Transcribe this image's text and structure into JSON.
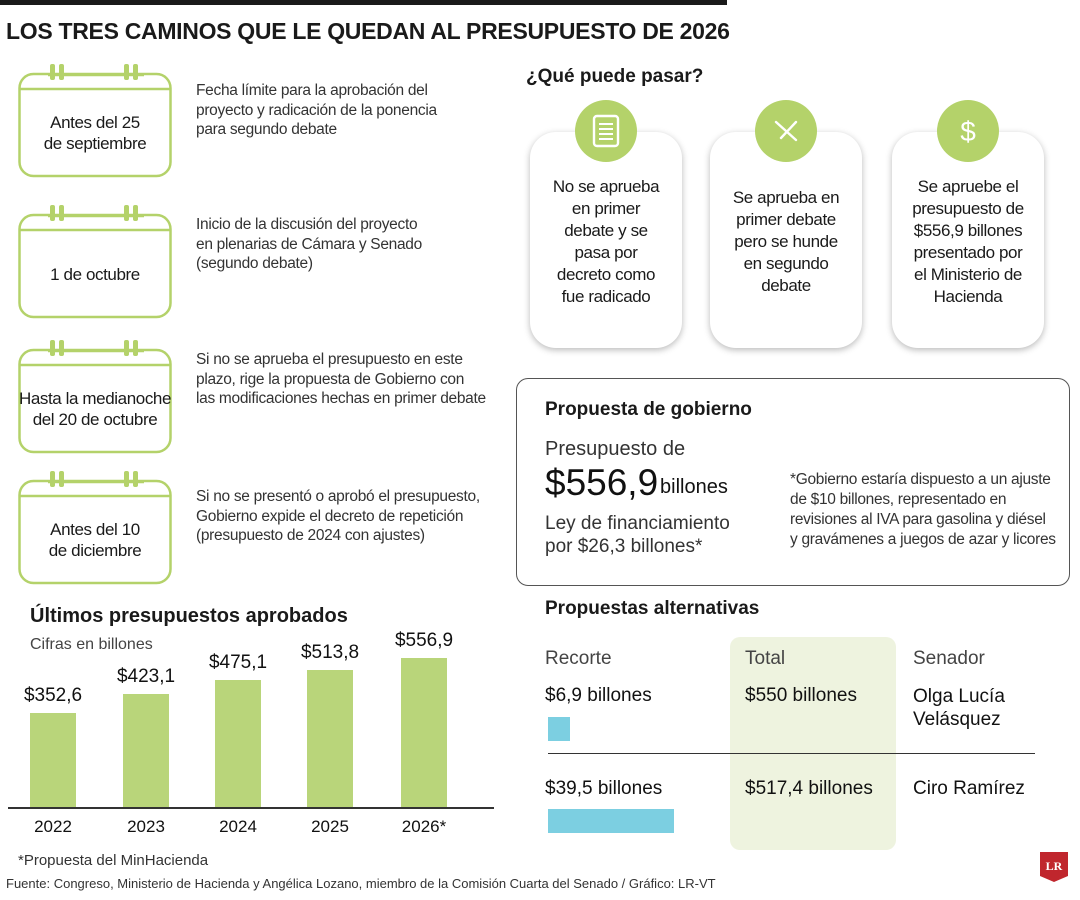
{
  "title": "LOS TRES CAMINOS QUE LE QUEDAN AL PRESUPUESTO DE 2026",
  "timeline": [
    {
      "date_lines": [
        "Antes del 25",
        "de septiembre"
      ],
      "desc_lines": [
        "Fecha límite para la aprobación del",
        "proyecto y radicación de la ponencia",
        "para segundo debate"
      ]
    },
    {
      "date_lines": [
        "1 de octubre"
      ],
      "desc_lines": [
        "Inicio de la discusión del proyecto",
        "en plenarias de Cámara y Senado",
        "(segundo debate)"
      ]
    },
    {
      "date_lines": [
        "Hasta la medianoche",
        "del 20 de octubre"
      ],
      "desc_lines": [
        "Si no se aprueba el presupuesto en este",
        "plazo, rige la propuesta de Gobierno con",
        "las modificaciones hechas en primer debate"
      ]
    },
    {
      "date_lines": [
        "Antes del 10",
        "de diciembre"
      ],
      "desc_lines": [
        "Si no se presentó o aprobó el presupuesto,",
        "Gobierno expide el decreto de repetición",
        "(presupuesto de 2024 con ajustes)"
      ]
    }
  ],
  "scenarios": {
    "heading": "¿Qué puede pasar?",
    "items": [
      {
        "icon": "document-icon",
        "lines": [
          "No se aprueba",
          "en primer",
          "debate y se",
          "pasa por",
          "decreto como",
          "fue radicado"
        ]
      },
      {
        "icon": "check-icon",
        "lines": [
          "Se aprueba en",
          "primer debate",
          "pero se hunde",
          "en segundo",
          "debate"
        ]
      },
      {
        "icon": "dollar-icon",
        "lines": [
          "Se apruebe el",
          "presupuesto de",
          "$556,9 billones",
          "presentado por",
          "el Ministerio de",
          "Hacienda"
        ]
      }
    ]
  },
  "propuesta": {
    "title": "Propuesta de gobierno",
    "line1": "Presupuesto de",
    "amount": "$556,9",
    "unit": "billones",
    "ley_lines": [
      "Ley de financiamiento",
      "por $26,3 billones*"
    ],
    "note_lines": [
      "*Gobierno estaría dispuesto a un ajuste",
      "de $10 billones, representado en",
      "revisiones al IVA para gasolina y diésel",
      "y gravámenes a juegos de azar y licores"
    ]
  },
  "alternativas": {
    "title": "Propuestas alternativas",
    "headers": {
      "recorte": "Recorte",
      "total": "Total",
      "senador": "Senador"
    },
    "rows": [
      {
        "recorte": "$6,9 billones",
        "recorte_value": 6.9,
        "total": "$550 billones",
        "senador_lines": [
          "Olga Lucía",
          "Velásquez"
        ]
      },
      {
        "recorte": "$39,5 billones",
        "recorte_value": 39.5,
        "total": "$517,4 billones",
        "senador_lines": [
          "Ciro Ramírez"
        ]
      }
    ],
    "bar_color": "#7ccfe1"
  },
  "chart_data": {
    "type": "bar",
    "title": "Últimos presupuestos aprobados",
    "subtitle": "Cifras en billones",
    "categories": [
      "2022",
      "2023",
      "2024",
      "2025",
      "2026*"
    ],
    "values": [
      352.6,
      423.1,
      475.1,
      513.8,
      556.9
    ],
    "value_labels": [
      "$352,6",
      "$423,1",
      "$475,1",
      "$513,8",
      "$556,9"
    ],
    "ylim": [
      0,
      600
    ],
    "bar_color": "#b9d57a",
    "grid": false
  },
  "footnote": "*Propuesta del MinHacienda",
  "source": "Fuente: Congreso, Ministerio de Hacienda y Angélica Lozano, miembro de la Comisión Cuarta del Senado / Gráfico: LR-VT",
  "logo": "LR",
  "accent_green": "#b4d26a"
}
